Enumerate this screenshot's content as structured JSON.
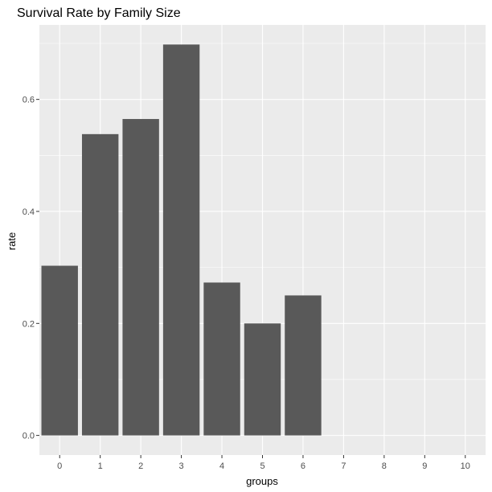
{
  "chart_data": {
    "type": "bar",
    "title": "Survival Rate by Family Size",
    "xlabel": "groups",
    "ylabel": "rate",
    "categories": [
      "0",
      "1",
      "2",
      "3",
      "4",
      "5",
      "6",
      "7",
      "8",
      "9",
      "10"
    ],
    "values": [
      0.303,
      0.538,
      0.565,
      0.698,
      0.273,
      0.2,
      0.25,
      null,
      null,
      null,
      null
    ],
    "ylim": [
      -0.035,
      0.733
    ],
    "yticks": [
      0.0,
      0.2,
      0.4,
      0.6
    ],
    "ytick_labels": [
      "0.0",
      "0.2",
      "0.4",
      "0.6"
    ],
    "grid": true,
    "colors": {
      "panel": "#ebebeb",
      "grid": "#ffffff",
      "bar": "#595959",
      "tick": "#333333"
    }
  }
}
